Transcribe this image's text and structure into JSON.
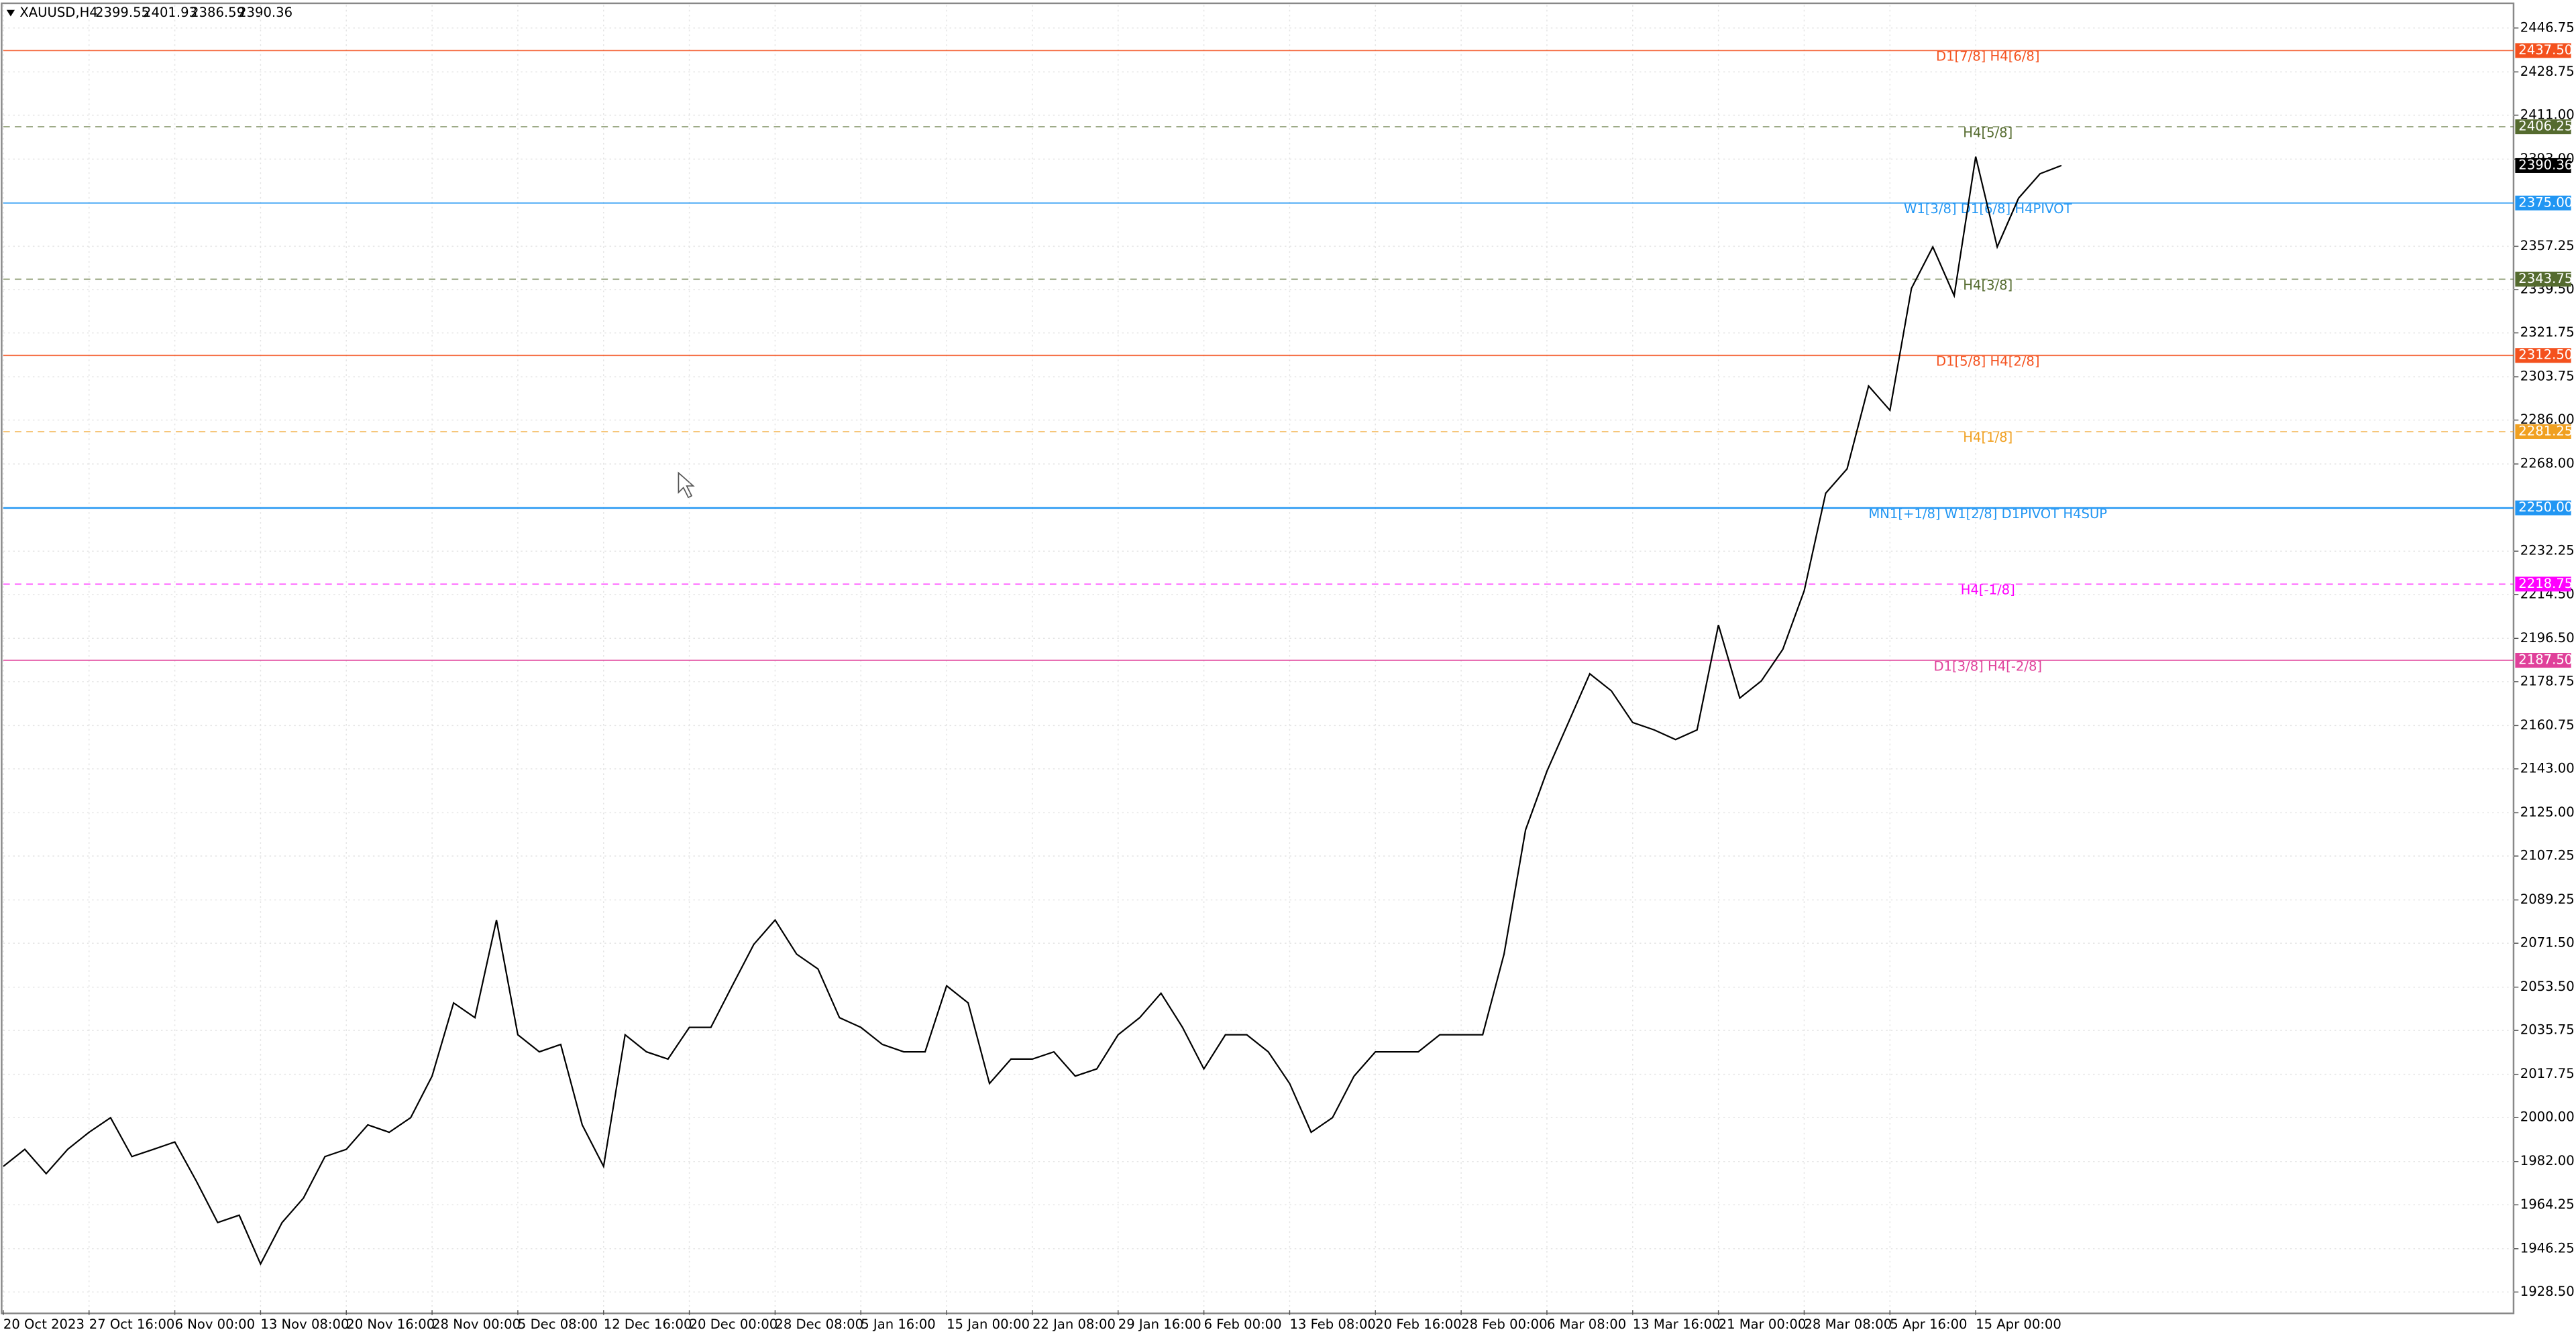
{
  "chart_data": {
    "type": "line",
    "symbol": "XAUUSD,H4",
    "ohlc": [
      2399.55,
      2401.93,
      2386.59,
      2390.36
    ],
    "last_price": 2390.36,
    "categories": [
      "20 Oct 2023",
      null,
      null,
      null,
      "27 Oct 16:00",
      null,
      null,
      null,
      "6 Nov 00:00",
      null,
      null,
      null,
      "13 Nov 08:00",
      null,
      null,
      null,
      "20 Nov 16:00",
      null,
      null,
      null,
      "28 Nov 00:00",
      null,
      null,
      null,
      "5 Dec 08:00",
      null,
      null,
      null,
      "12 Dec 16:00",
      null,
      null,
      null,
      "20 Dec 00:00",
      null,
      null,
      null,
      "28 Dec 08:00",
      null,
      null,
      null,
      "5 Jan 16:00",
      null,
      null,
      null,
      "15 Jan 00:00",
      null,
      null,
      null,
      "22 Jan 08:00",
      null,
      null,
      null,
      "29 Jan 16:00",
      null,
      null,
      null,
      "6 Feb 00:00",
      null,
      null,
      null,
      "13 Feb 08:00",
      null,
      null,
      null,
      "20 Feb 16:00",
      null,
      null,
      null,
      "28 Feb 00:00",
      null,
      null,
      null,
      "6 Mar 08:00",
      null,
      null,
      null,
      "13 Mar 16:00",
      null,
      null,
      null,
      "21 Mar 00:00",
      null,
      null,
      null,
      "28 Mar 08:00",
      null,
      null,
      null,
      "5 Apr 16:00",
      null,
      null,
      null,
      "15 Apr 00:00",
      null,
      null,
      null,
      null
    ],
    "series": [
      {
        "color": "#000000",
        "values": [
          1980,
          1987,
          1977,
          1987,
          1994,
          2000,
          1984,
          1987,
          1990,
          1974,
          1957,
          1960,
          1940,
          1957,
          1967,
          1984,
          1987,
          1997,
          1994,
          2000,
          2017,
          2047,
          2041,
          2081,
          2034,
          2027,
          2030,
          1997,
          1980,
          2034,
          2027,
          2024,
          2037,
          2037,
          2054,
          2071,
          2081,
          2067,
          2061,
          2041,
          2037,
          2030,
          2027,
          2027,
          2054,
          2047,
          2014,
          2024,
          2024,
          2027,
          2017,
          2020,
          2034,
          2041,
          2051,
          2037,
          2020,
          2034,
          2034,
          2027,
          2014,
          1994,
          2000,
          2017,
          2027,
          2027,
          2027,
          2034,
          2034,
          2034,
          2067,
          2118,
          2142,
          2162,
          2182,
          2175,
          2162,
          2159,
          2155,
          2159,
          2202,
          2172,
          2179,
          2192,
          2216,
          2256,
          2266,
          2300,
          2290,
          2340,
          2357,
          2337,
          2394,
          2357,
          2377,
          2387,
          2390.36
        ]
      }
    ],
    "ylim": [
      1921.1,
      2456.2
    ],
    "yticks": [
      2446.75,
      2428.75,
      {
        "value": 2411,
        "label": "2411.00"
      },
      {
        "value": 2393,
        "label": "2393.00"
      },
      2357.25,
      {
        "value": 2339.5,
        "label": "2339.50"
      },
      2321.75,
      2303.75,
      {
        "value": 2286,
        "label": "2286.00"
      },
      {
        "value": 2268,
        "label": "2268.00"
      },
      2232.25,
      {
        "value": 2214.5,
        "label": "2214.50"
      },
      {
        "value": 2196.5,
        "label": "2196.50"
      },
      2178.75,
      2160.75,
      {
        "value": 2143,
        "label": "2143.00"
      },
      {
        "value": 2125,
        "label": "2125.00"
      },
      2107.25,
      2089.25,
      {
        "value": 2071.5,
        "label": "2071.50"
      },
      {
        "value": 2053.5,
        "label": "2053.50"
      },
      2035.75,
      2017.75,
      {
        "value": 2000,
        "label": "2000.00"
      },
      {
        "value": 1982,
        "label": "1982.00"
      },
      1964.25,
      1946.25,
      {
        "value": 1928.5,
        "label": "1928.50"
      }
    ],
    "grid": true,
    "levels": [
      {
        "value": 2437.5,
        "tag": "2437.50",
        "label": "D1[7/8] H4[6/8]",
        "color": "#f4511e",
        "style": "solid"
      },
      {
        "value": 2406.25,
        "tag": "2406.25",
        "label": "H4[5/8]",
        "color": "#556b2f",
        "style": "dashed"
      },
      {
        "value": 2375,
        "tag": "2375.00",
        "label": "W1[3/8] D1[6/8] H4PIVOT",
        "color": "#2196f3",
        "style": "solid"
      },
      {
        "value": 2343.75,
        "tag": "2343.75",
        "label": "H4[3/8]",
        "color": "#556b2f",
        "style": "dashed"
      },
      {
        "value": 2312.5,
        "tag": "2312.50",
        "label": "D1[5/8] H4[2/8]",
        "color": "#f4511e",
        "style": "solid"
      },
      {
        "value": 2281.25,
        "tag": "2281.25",
        "label": "H4[1/8]",
        "color": "#f0a020",
        "style": "dashed"
      },
      {
        "value": 2250,
        "tag": "2250.00",
        "label": "MN1[+1/8] W1[2/8] D1PIVOT H4SUP",
        "color": "#2196f3",
        "style": "thick"
      },
      {
        "value": 2218.75,
        "tag": "2218.75",
        "label": "H4[-1/8]",
        "color": "#ff00ff",
        "style": "dashed"
      },
      {
        "value": 2187.5,
        "tag": "2187.50",
        "label": "D1[3/8] H4[-2/8]",
        "color": "#e0409a",
        "style": "solid"
      }
    ]
  }
}
